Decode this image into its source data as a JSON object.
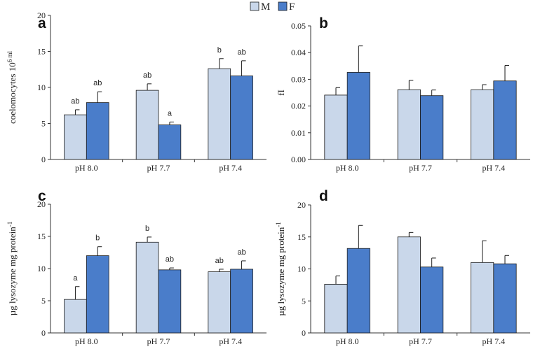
{
  "legend": {
    "entries": [
      {
        "label": "M",
        "color": "#c9d7ea"
      },
      {
        "label": "F",
        "color": "#4a7dca"
      }
    ]
  },
  "colors": {
    "M": "#c9d7ea",
    "F": "#4a7dca",
    "stroke": "#1a1a1a"
  },
  "chart_data": [
    {
      "panel": "a",
      "type": "bar",
      "categories": [
        "pH 8.0",
        "pH 7.7",
        "pH 7.4"
      ],
      "ylabel": "coelomocytes 10^6 ml^-1",
      "ylim": [
        0,
        20
      ],
      "yticks": [
        "0",
        "5",
        "10",
        "15",
        "20"
      ],
      "series": [
        {
          "name": "M",
          "values": [
            6.2,
            9.6,
            12.6
          ],
          "errors": [
            0.7,
            0.9,
            1.4
          ],
          "labels": [
            "ab",
            "ab",
            "b"
          ]
        },
        {
          "name": "F",
          "values": [
            7.9,
            4.8,
            11.6
          ],
          "errors": [
            1.5,
            0.4,
            2.1
          ],
          "labels": [
            "ab",
            "a",
            "ab"
          ]
        }
      ]
    },
    {
      "panel": "b",
      "type": "bar",
      "categories": [
        "pH 8.0",
        "pH 7.7",
        "pH 7.4"
      ],
      "ylabel": "fI",
      "ylim": [
        0,
        0.05
      ],
      "yticks": [
        "0.00",
        "0.01",
        "0.02",
        "0.03",
        "0.04",
        "0.05"
      ],
      "series": [
        {
          "name": "M",
          "values": [
            0.0241,
            0.0261,
            0.0261
          ],
          "errors": [
            0.0028,
            0.0035,
            0.0019
          ],
          "labels": [
            "",
            "",
            ""
          ]
        },
        {
          "name": "F",
          "values": [
            0.0326,
            0.0239,
            0.0294
          ],
          "errors": [
            0.0099,
            0.0021,
            0.0058
          ],
          "labels": [
            "",
            "",
            ""
          ]
        }
      ]
    },
    {
      "panel": "c",
      "type": "bar",
      "categories": [
        "pH 8.0",
        "pH 7.7",
        "pH 7.4"
      ],
      "ylabel": "µg lysozyme mg protein^-1",
      "ylim": [
        0,
        20
      ],
      "yticks": [
        "0",
        "5",
        "10",
        "15",
        "20"
      ],
      "series": [
        {
          "name": "M",
          "values": [
            5.2,
            14.1,
            9.5
          ],
          "errors": [
            2.0,
            0.8,
            0.4
          ],
          "labels": [
            "a",
            "b",
            "ab"
          ]
        },
        {
          "name": "F",
          "values": [
            12.0,
            9.8,
            9.9
          ],
          "errors": [
            1.4,
            0.3,
            1.3
          ],
          "labels": [
            "b",
            "ab",
            "ab"
          ]
        }
      ]
    },
    {
      "panel": "d",
      "type": "bar",
      "categories": [
        "pH 8.0",
        "pH 7.7",
        "pH 7.4"
      ],
      "ylabel": "µg lysozyme  mg protein^-1",
      "ylim": [
        0,
        20
      ],
      "yticks": [
        "0",
        "5",
        "10",
        "15",
        "20"
      ],
      "series": [
        {
          "name": "M",
          "values": [
            7.6,
            15.0,
            11.0
          ],
          "errors": [
            1.3,
            0.7,
            3.4
          ],
          "labels": [
            "",
            "",
            ""
          ]
        },
        {
          "name": "F",
          "values": [
            13.2,
            10.3,
            10.8
          ],
          "errors": [
            3.6,
            1.4,
            1.3
          ],
          "labels": [
            "",
            "",
            ""
          ]
        }
      ]
    }
  ]
}
